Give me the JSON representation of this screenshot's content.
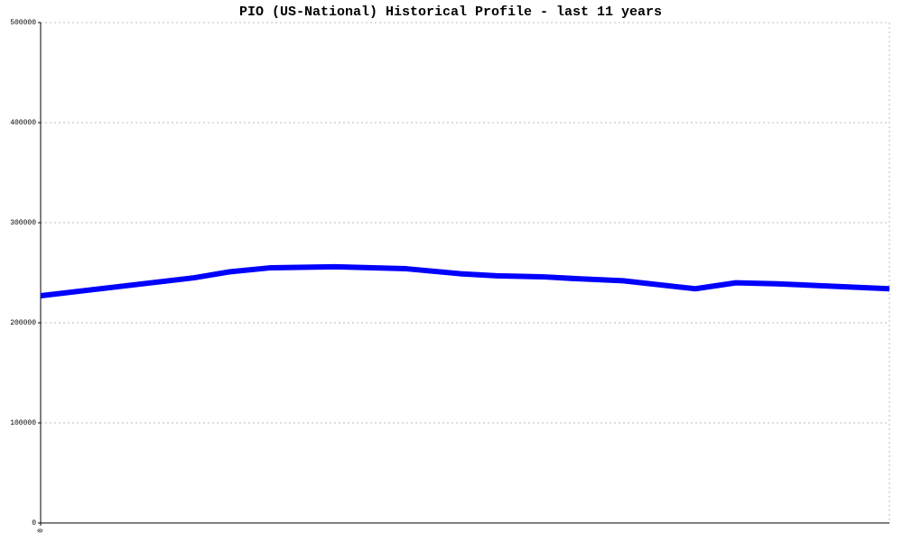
{
  "chart_data": {
    "type": "line",
    "title": "PIO (US-National) Historical Profile - last 11 years",
    "x": [
      0,
      170,
      210,
      255,
      325,
      405,
      465,
      505,
      555,
      595,
      645,
      725,
      770,
      815,
      940
    ],
    "series": [
      {
        "color": "#0000ff",
        "values": [
          227000,
          245000,
          251000,
          255000,
          256000,
          254000,
          249000,
          247000,
          246000,
          244000,
          242000,
          234000,
          240000,
          239000,
          234000
        ]
      }
    ],
    "xlim": [
      0,
      940
    ],
    "xticks": [
      0
    ],
    "ylim": [
      0,
      500000
    ],
    "yticks": [
      0,
      100000,
      200000,
      300000,
      400000,
      500000
    ],
    "grid": true
  }
}
